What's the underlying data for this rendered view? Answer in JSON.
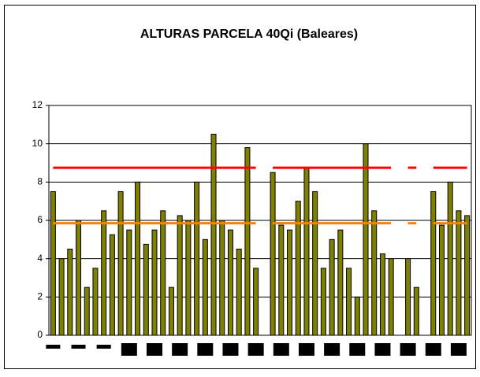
{
  "chart_data": {
    "type": "bar",
    "title": "ALTURAS PARCELA 40Qi (Baleares)",
    "categories": [
      null,
      null,
      null,
      null,
      null,
      null,
      null,
      null,
      null,
      null,
      null,
      null,
      null,
      null,
      null,
      null,
      null,
      null,
      null,
      null,
      null,
      null,
      null,
      null,
      null,
      null,
      null,
      null,
      null,
      null,
      null,
      null,
      null,
      null,
      null,
      null,
      null,
      null,
      null,
      null,
      null,
      null,
      null,
      null,
      null,
      null,
      null,
      null,
      null,
      null
    ],
    "values": [
      7.5,
      4,
      4.5,
      6,
      2.5,
      3.5,
      6.5,
      5.25,
      7.5,
      5.5,
      8,
      4.75,
      5.5,
      6.5,
      2.5,
      6.25,
      6,
      8,
      5,
      10.5,
      6,
      5.5,
      4.5,
      9.8,
      3.5,
      null,
      8.5,
      5.75,
      5.5,
      7,
      8.75,
      7.5,
      3.5,
      5,
      5.5,
      3.5,
      2,
      10,
      6.5,
      4.25,
      4,
      null,
      4,
      2.5,
      null,
      7.5,
      5.75,
      8,
      6.5,
      6.25
    ],
    "color": "#808000",
    "lines": [
      {
        "color": "#ff0000",
        "values": [
          8.75,
          8.75,
          8.75,
          8.75,
          8.75,
          8.75,
          8.75,
          8.75,
          8.75,
          8.75,
          8.75,
          8.75,
          8.75,
          8.75,
          8.75,
          8.75,
          8.75,
          8.75,
          8.75,
          8.75,
          8.75,
          8.75,
          8.75,
          8.75,
          8.75,
          null,
          8.75,
          8.75,
          8.75,
          8.75,
          8.75,
          8.75,
          8.75,
          8.75,
          8.75,
          8.75,
          8.75,
          8.75,
          8.75,
          8.75,
          8.75,
          null,
          8.75,
          8.75,
          null,
          8.75,
          8.75,
          8.75,
          8.75,
          8.75
        ]
      },
      {
        "color": "#ff8000",
        "values": [
          5.85,
          5.85,
          5.85,
          5.85,
          5.85,
          5.85,
          5.85,
          5.85,
          5.85,
          5.85,
          5.85,
          5.85,
          5.85,
          5.85,
          5.85,
          5.85,
          5.85,
          5.85,
          5.85,
          5.85,
          5.85,
          5.85,
          5.85,
          5.85,
          5.85,
          null,
          5.85,
          5.85,
          5.85,
          5.85,
          5.85,
          5.85,
          5.85,
          5.85,
          5.85,
          5.85,
          5.85,
          5.85,
          5.85,
          5.85,
          5.85,
          null,
          5.85,
          5.85,
          null,
          5.85,
          5.85,
          5.85,
          5.85,
          5.85
        ]
      }
    ],
    "ylim": [
      0,
      12
    ],
    "yticks": [
      0,
      2,
      4,
      6,
      8,
      10,
      12
    ],
    "grid": true
  }
}
